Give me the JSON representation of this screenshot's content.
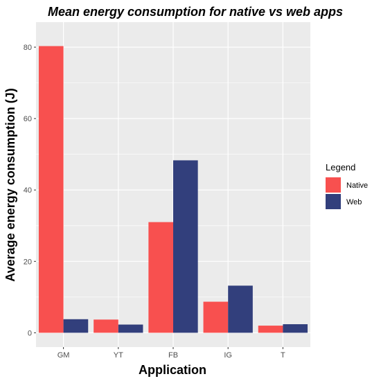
{
  "chart_data": {
    "type": "bar",
    "title": "Mean energy consumption for native vs web apps",
    "xlabel": "Application",
    "ylabel": "Average energy consumption (J)",
    "categories": [
      "GM",
      "YT",
      "FB",
      "IG",
      "T"
    ],
    "series": [
      {
        "name": "Native",
        "color": "#f8504f",
        "values": [
          80.3,
          3.7,
          31.0,
          8.7,
          2.0
        ]
      },
      {
        "name": "Web",
        "color": "#323f7c",
        "values": [
          3.8,
          2.3,
          48.3,
          13.2,
          2.4
        ]
      }
    ],
    "ylim": [
      -4,
      87
    ],
    "yticks": [
      0,
      20,
      40,
      60,
      80
    ],
    "grid": true,
    "legend": {
      "title": "Legend",
      "position": "right"
    }
  }
}
